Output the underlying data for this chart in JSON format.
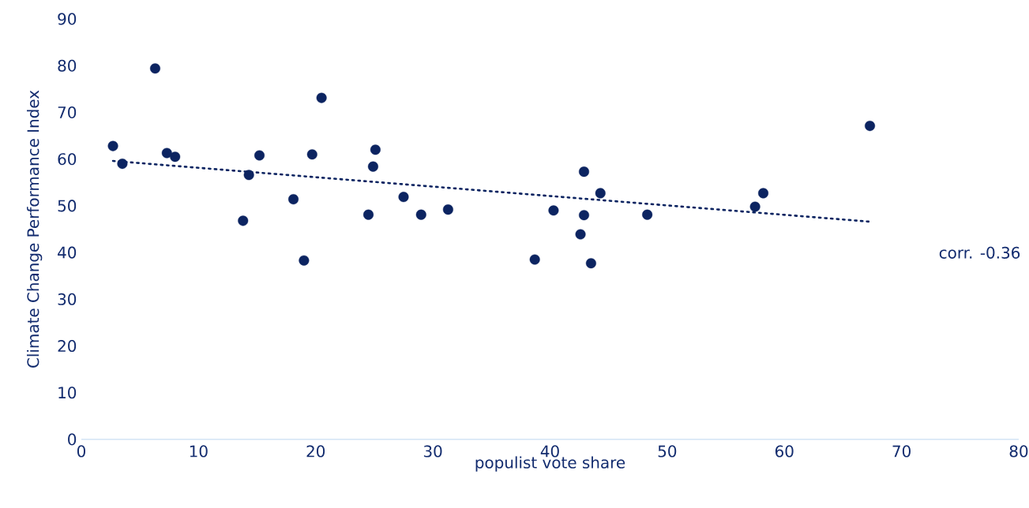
{
  "chart_data": {
    "type": "scatter",
    "xlabel": "populist vote share",
    "ylabel": "Climate Change Performance Index",
    "xlim": [
      0,
      80
    ],
    "ylim": [
      0,
      90
    ],
    "xticks": [
      0,
      10,
      20,
      30,
      40,
      50,
      60,
      70,
      80
    ],
    "yticks": [
      0,
      10,
      20,
      30,
      40,
      50,
      60,
      70,
      80,
      90
    ],
    "grid": false,
    "legend": false,
    "marker": "circle",
    "annotations": [
      "corr. -0.36"
    ],
    "series": [
      {
        "type": "scatter",
        "color": "#0c2461",
        "x": [
          2.7,
          3.5,
          6.3,
          7.3,
          8.0,
          13.8,
          14.3,
          15.2,
          18.1,
          19.0,
          19.7,
          20.5,
          24.5,
          24.9,
          25.1,
          27.5,
          29.0,
          31.3,
          38.7,
          40.3,
          42.6,
          42.9,
          42.9,
          43.5,
          44.3,
          48.3,
          57.5,
          58.2,
          67.3
        ],
        "values": [
          62.8,
          59.0,
          79.4,
          61.3,
          60.5,
          46.8,
          56.6,
          60.8,
          51.4,
          38.3,
          61.0,
          73.1,
          48.1,
          58.4,
          62.0,
          51.9,
          48.1,
          49.2,
          38.5,
          49.0,
          43.9,
          57.3,
          48.0,
          37.7,
          52.7,
          48.1,
          49.8,
          52.7,
          67.1
        ]
      },
      {
        "type": "line",
        "color": "#0c2461",
        "line_style": "dotted",
        "marker": "none",
        "x": [
          2.7,
          67.3
        ],
        "values": [
          59.6,
          46.6
        ]
      }
    ]
  }
}
